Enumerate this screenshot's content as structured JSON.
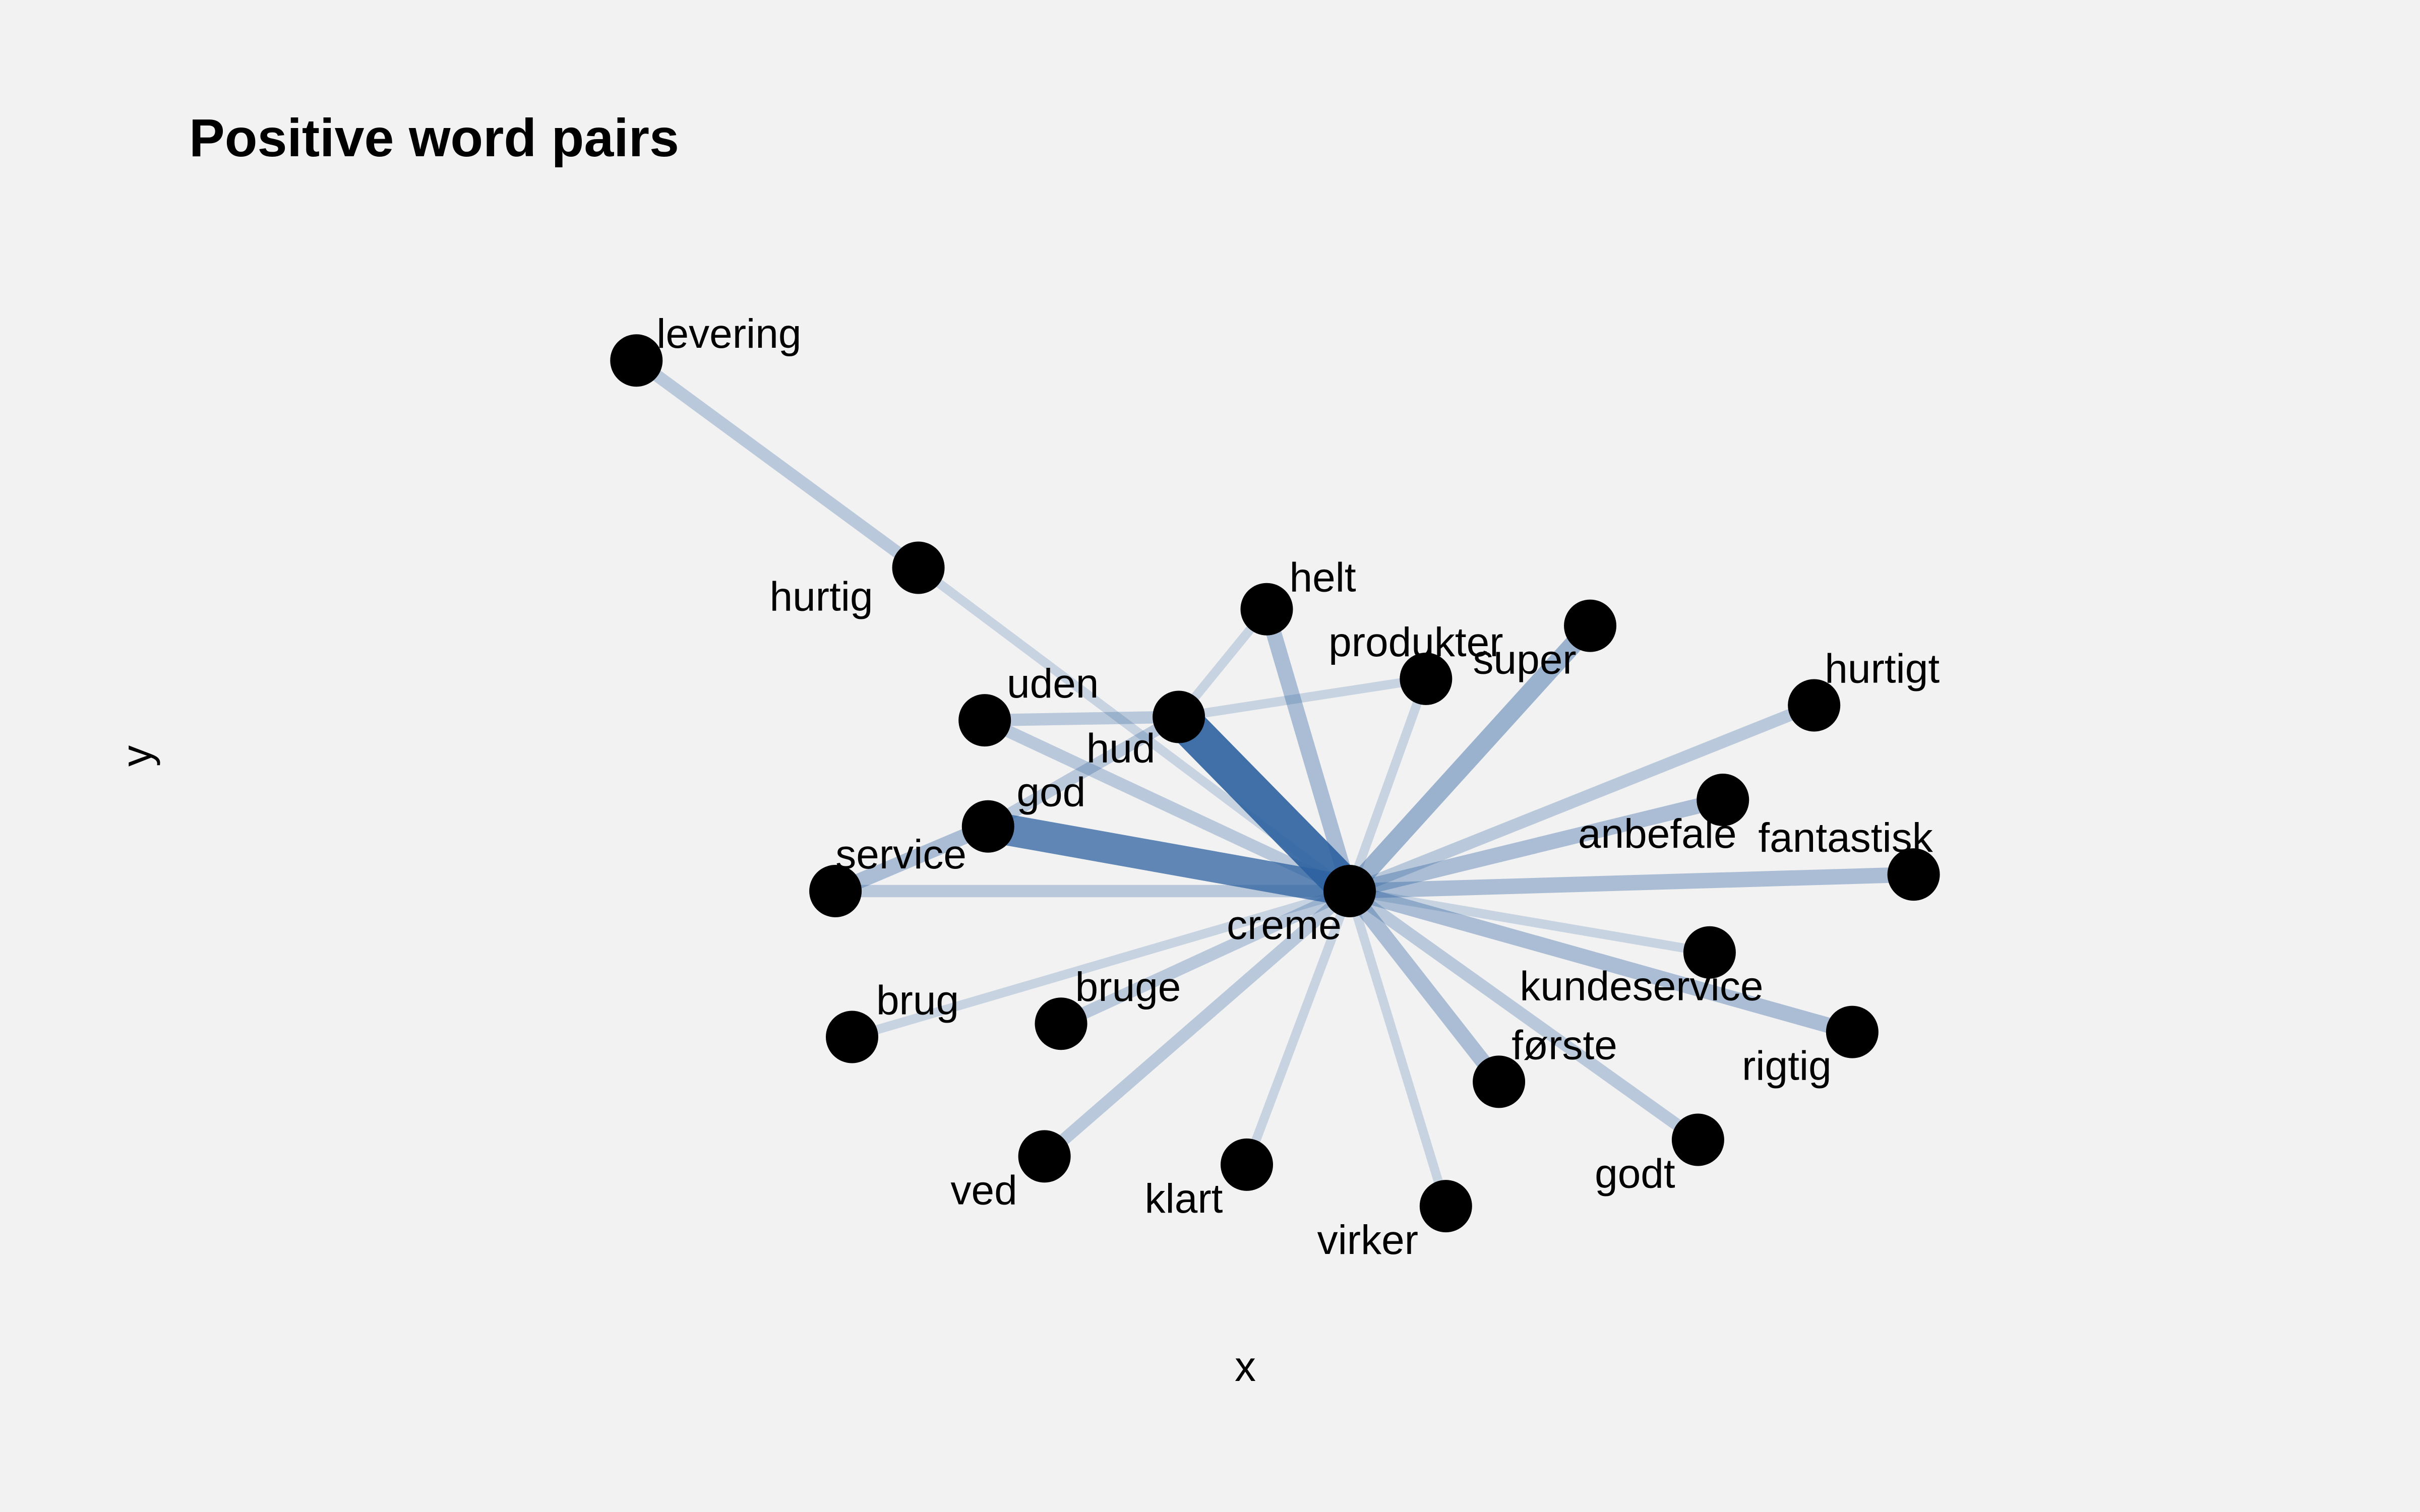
{
  "chart_data": {
    "type": "network",
    "title": "Positive word pairs",
    "xlabel": "x",
    "ylabel": "y",
    "grid": false,
    "edge_color": "#2e62a0",
    "node_color": "#000000",
    "nodes": [
      {
        "id": "creme",
        "label": "creme",
        "x": 0.0,
        "y": 0.0
      },
      {
        "id": "levering",
        "label": "levering",
        "x": -4.3,
        "y": 3.2
      },
      {
        "id": "hurtig",
        "label": "hurtig",
        "x": -2.6,
        "y": 1.95
      },
      {
        "id": "helt",
        "label": "helt",
        "x": -0.5,
        "y": 1.7
      },
      {
        "id": "produkter",
        "label": "produkter",
        "x": 0.46,
        "y": 1.28
      },
      {
        "id": "super",
        "label": "super",
        "x": 1.45,
        "y": 1.6
      },
      {
        "id": "hurtigt",
        "label": "hurtigt",
        "x": 2.8,
        "y": 1.12
      },
      {
        "id": "uden",
        "label": "uden",
        "x": -2.2,
        "y": 1.03
      },
      {
        "id": "hud",
        "label": "hud",
        "x": -1.03,
        "y": 1.05
      },
      {
        "id": "god",
        "label": "god",
        "x": -2.18,
        "y": 0.39
      },
      {
        "id": "anbefale",
        "label": "anbefale",
        "x": 2.25,
        "y": 0.55
      },
      {
        "id": "service",
        "label": "service",
        "x": -3.1,
        "y": 0.0
      },
      {
        "id": "fantastisk",
        "label": "fantastisk",
        "x": 3.4,
        "y": 0.1
      },
      {
        "id": "kundeservice",
        "label": "kundeservice",
        "x": 2.17,
        "y": -0.37
      },
      {
        "id": "brug",
        "label": "brug",
        "x": -3.0,
        "y": -0.88
      },
      {
        "id": "bruge",
        "label": "bruge",
        "x": -1.74,
        "y": -0.8
      },
      {
        "id": "rigtig",
        "label": "rigtig",
        "x": 3.03,
        "y": -0.85
      },
      {
        "id": "forste",
        "label": "første",
        "x": 0.9,
        "y": -1.15
      },
      {
        "id": "ved",
        "label": "ved",
        "x": -1.84,
        "y": -1.6
      },
      {
        "id": "klart",
        "label": "klart",
        "x": -0.62,
        "y": -1.65
      },
      {
        "id": "godt",
        "label": "godt",
        "x": 2.1,
        "y": -1.5
      },
      {
        "id": "virker",
        "label": "virker",
        "x": 0.58,
        "y": -1.9
      }
    ],
    "edges": [
      {
        "source": "levering",
        "target": "hurtig",
        "weight": 2
      },
      {
        "source": "hurtig",
        "target": "creme",
        "weight": 1
      },
      {
        "source": "creme",
        "target": "hud",
        "weight": 10
      },
      {
        "source": "creme",
        "target": "god",
        "weight": 8
      },
      {
        "source": "creme",
        "target": "super",
        "weight": 4
      },
      {
        "source": "creme",
        "target": "helt",
        "weight": 3
      },
      {
        "source": "creme",
        "target": "produkter",
        "weight": 1
      },
      {
        "source": "creme",
        "target": "hurtigt",
        "weight": 2
      },
      {
        "source": "creme",
        "target": "anbefale",
        "weight": 3
      },
      {
        "source": "creme",
        "target": "fantastisk",
        "weight": 3
      },
      {
        "source": "creme",
        "target": "kundeservice",
        "weight": 1
      },
      {
        "source": "creme",
        "target": "rigtig",
        "weight": 3
      },
      {
        "source": "creme",
        "target": "forste",
        "weight": 3
      },
      {
        "source": "creme",
        "target": "godt",
        "weight": 2
      },
      {
        "source": "creme",
        "target": "virker",
        "weight": 1
      },
      {
        "source": "creme",
        "target": "klart",
        "weight": 1
      },
      {
        "source": "creme",
        "target": "ved",
        "weight": 2
      },
      {
        "source": "creme",
        "target": "bruge",
        "weight": 2
      },
      {
        "source": "creme",
        "target": "brug",
        "weight": 1
      },
      {
        "source": "creme",
        "target": "service",
        "weight": 2
      },
      {
        "source": "creme",
        "target": "uden",
        "weight": 2
      },
      {
        "source": "god",
        "target": "service",
        "weight": 3
      },
      {
        "source": "god",
        "target": "hud",
        "weight": 2
      },
      {
        "source": "uden",
        "target": "hud",
        "weight": 2
      },
      {
        "source": "hud",
        "target": "helt",
        "weight": 1
      },
      {
        "source": "hud",
        "target": "produkter",
        "weight": 1
      }
    ]
  }
}
